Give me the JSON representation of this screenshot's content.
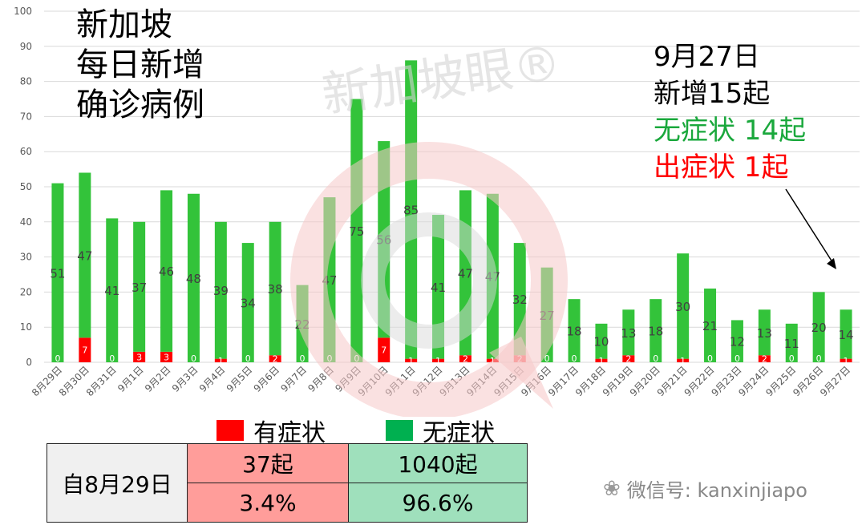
{
  "title_lines": [
    "新加坡",
    "每日新增",
    "确诊病例"
  ],
  "annotation": {
    "date": "9月27日",
    "new_cases": "新增15起",
    "asymptomatic": "无症状 14起",
    "symptomatic": "出症状 1起"
  },
  "legend": [
    {
      "label": "有症状",
      "color": "#ff0000"
    },
    {
      "label": "无症状",
      "color": "#00b050"
    }
  ],
  "summary": {
    "since_label": "自8月29日",
    "symptomatic_count": "37起",
    "asymptomatic_count": "1040起",
    "symptomatic_pct": "3.4%",
    "asymptomatic_pct": "96.6%",
    "symptomatic_color": "#ff9d9a",
    "asymptomatic_color": "#9fe0bc"
  },
  "watermark_text": "新加坡眼®",
  "wechat_text": "微信号: kanxinjiapo",
  "chart_data": {
    "type": "bar",
    "stacked": true,
    "categories": [
      "8月29日",
      "8月30日",
      "8月31日",
      "9月1日",
      "9月2日",
      "9月3日",
      "9月4日",
      "9月5日",
      "9月6日",
      "9月7日",
      "9月8日",
      "9月9日",
      "9月10日",
      "9月11日",
      "9月12日",
      "9月13日",
      "9月14日",
      "9月15日",
      "9月16日",
      "9月17日",
      "9月18日",
      "9月19日",
      "9月20日",
      "9月21日",
      "9月22日",
      "9月23日",
      "9月24日",
      "9月25日",
      "9月26日",
      "9月27日"
    ],
    "series": [
      {
        "name": "有症状",
        "color": "#ff0000",
        "values": [
          0,
          7,
          0,
          3,
          3,
          0,
          1,
          0,
          2,
          0,
          0,
          0,
          7,
          1,
          1,
          2,
          1,
          2,
          0,
          0,
          1,
          2,
          0,
          1,
          0,
          0,
          2,
          0,
          0,
          1
        ]
      },
      {
        "name": "无症状",
        "color": "#33c33a",
        "values": [
          51,
          47,
          41,
          37,
          46,
          48,
          39,
          34,
          38,
          22,
          47,
          75,
          56,
          85,
          41,
          47,
          47,
          32,
          27,
          18,
          10,
          13,
          18,
          30,
          21,
          12,
          13,
          11,
          20,
          14
        ]
      }
    ],
    "ylim": [
      0,
      100
    ],
    "yticks": [
      0,
      10,
      20,
      30,
      40,
      50,
      60,
      70,
      80,
      90,
      100
    ],
    "grid": true
  }
}
